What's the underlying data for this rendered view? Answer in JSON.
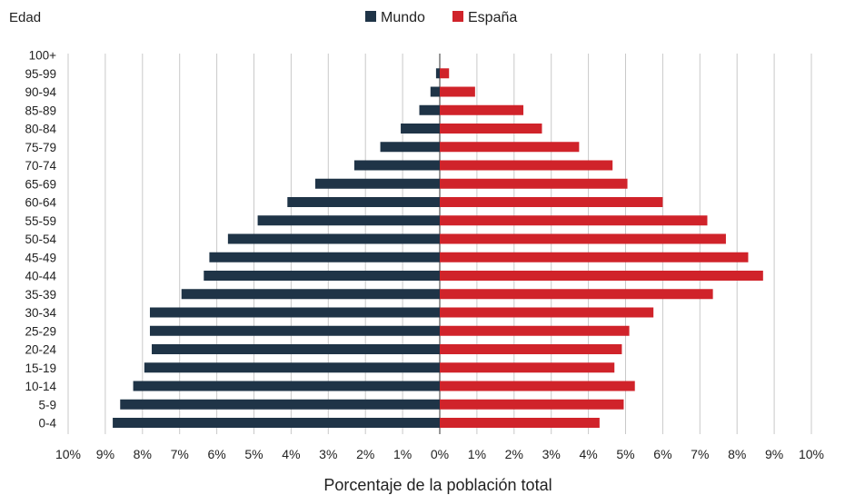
{
  "chart_data": {
    "type": "bar",
    "orientation": "horizontal-population-pyramid",
    "title": "",
    "ylabel": "Edad",
    "xlabel": "Porcentaje de la población total",
    "xlim": [
      -10,
      10
    ],
    "grid": true,
    "legend_position": "top-center",
    "x_ticks": [
      "10%",
      "9%",
      "8%",
      "7%",
      "6%",
      "5%",
      "4%",
      "3%",
      "2%",
      "1%",
      "0%",
      "1%",
      "2%",
      "3%",
      "4%",
      "5%",
      "6%",
      "7%",
      "8%",
      "9%",
      "10%"
    ],
    "categories": [
      "100+",
      "95-99",
      "90-94",
      "85-89",
      "80-84",
      "75-79",
      "70-74",
      "65-69",
      "60-64",
      "55-59",
      "50-54",
      "45-49",
      "40-44",
      "35-39",
      "30-34",
      "25-29",
      "20-24",
      "15-19",
      "10-14",
      "5-9",
      "0-4"
    ],
    "series": [
      {
        "name": "Mundo",
        "color": "#1f3447",
        "side": "left",
        "values": [
          0.0,
          0.1,
          0.25,
          0.55,
          1.05,
          1.6,
          2.3,
          3.35,
          4.1,
          4.9,
          5.7,
          6.2,
          6.35,
          6.95,
          7.8,
          7.8,
          7.75,
          7.95,
          8.25,
          8.6,
          8.8
        ]
      },
      {
        "name": "España",
        "color": "#d0232a",
        "side": "right",
        "values": [
          0.0,
          0.25,
          0.95,
          2.25,
          2.75,
          3.75,
          4.65,
          5.05,
          6.0,
          7.2,
          7.7,
          8.3,
          8.7,
          7.35,
          5.75,
          5.1,
          4.9,
          4.7,
          5.25,
          4.95,
          4.3
        ]
      }
    ]
  }
}
